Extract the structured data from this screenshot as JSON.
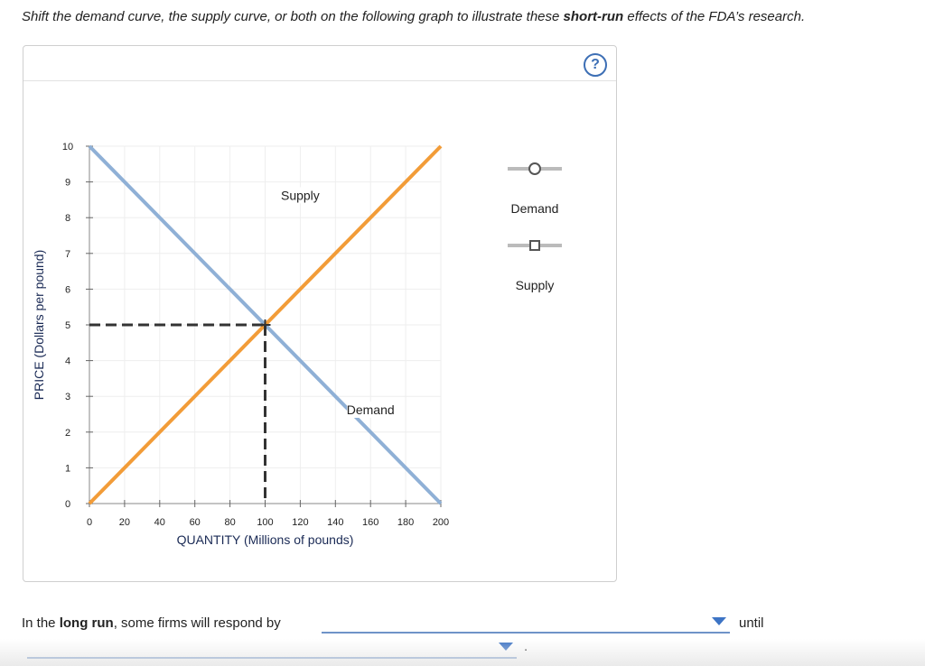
{
  "instruction": {
    "part1": "Shift the demand curve, the supply curve, or both on the following graph to illustrate these ",
    "bold": "short-run",
    "part2": " effects of the FDA’s research."
  },
  "help_icon": "?",
  "legend": {
    "demand_label": "Demand",
    "supply_label": "Supply",
    "demand_icon": "circle-marker-icon",
    "supply_icon": "square-marker-icon"
  },
  "chart_data": {
    "type": "line",
    "xlabel": "QUANTITY (Millions of pounds)",
    "ylabel": "PRICE (Dollars per pound)",
    "xlim": [
      0,
      200
    ],
    "ylim": [
      0,
      10
    ],
    "xticks": [
      "0",
      "20",
      "40",
      "60",
      "80",
      "100",
      "120",
      "140",
      "160",
      "180",
      "200"
    ],
    "yticks": [
      "0",
      "1",
      "2",
      "3",
      "4",
      "5",
      "6",
      "7",
      "8",
      "9",
      "10"
    ],
    "grid": true,
    "series": [
      {
        "name": "Demand",
        "color": "#8fb0d6",
        "points": [
          [
            0,
            10
          ],
          [
            200,
            0
          ]
        ]
      },
      {
        "name": "Supply",
        "color": "#f29c38",
        "points": [
          [
            0,
            0
          ],
          [
            200,
            10
          ]
        ]
      }
    ],
    "equilibrium": {
      "x": 100,
      "y": 5
    },
    "annotations": [
      {
        "text": "Supply",
        "x": 120,
        "y": 8.5
      },
      {
        "text": "Demand",
        "x": 160,
        "y": 2.5
      }
    ]
  },
  "bottom": {
    "sentence_start": "In the ",
    "sentence_bold": "long run",
    "sentence_mid": ", some firms will respond by",
    "until": "until",
    "period": "."
  }
}
